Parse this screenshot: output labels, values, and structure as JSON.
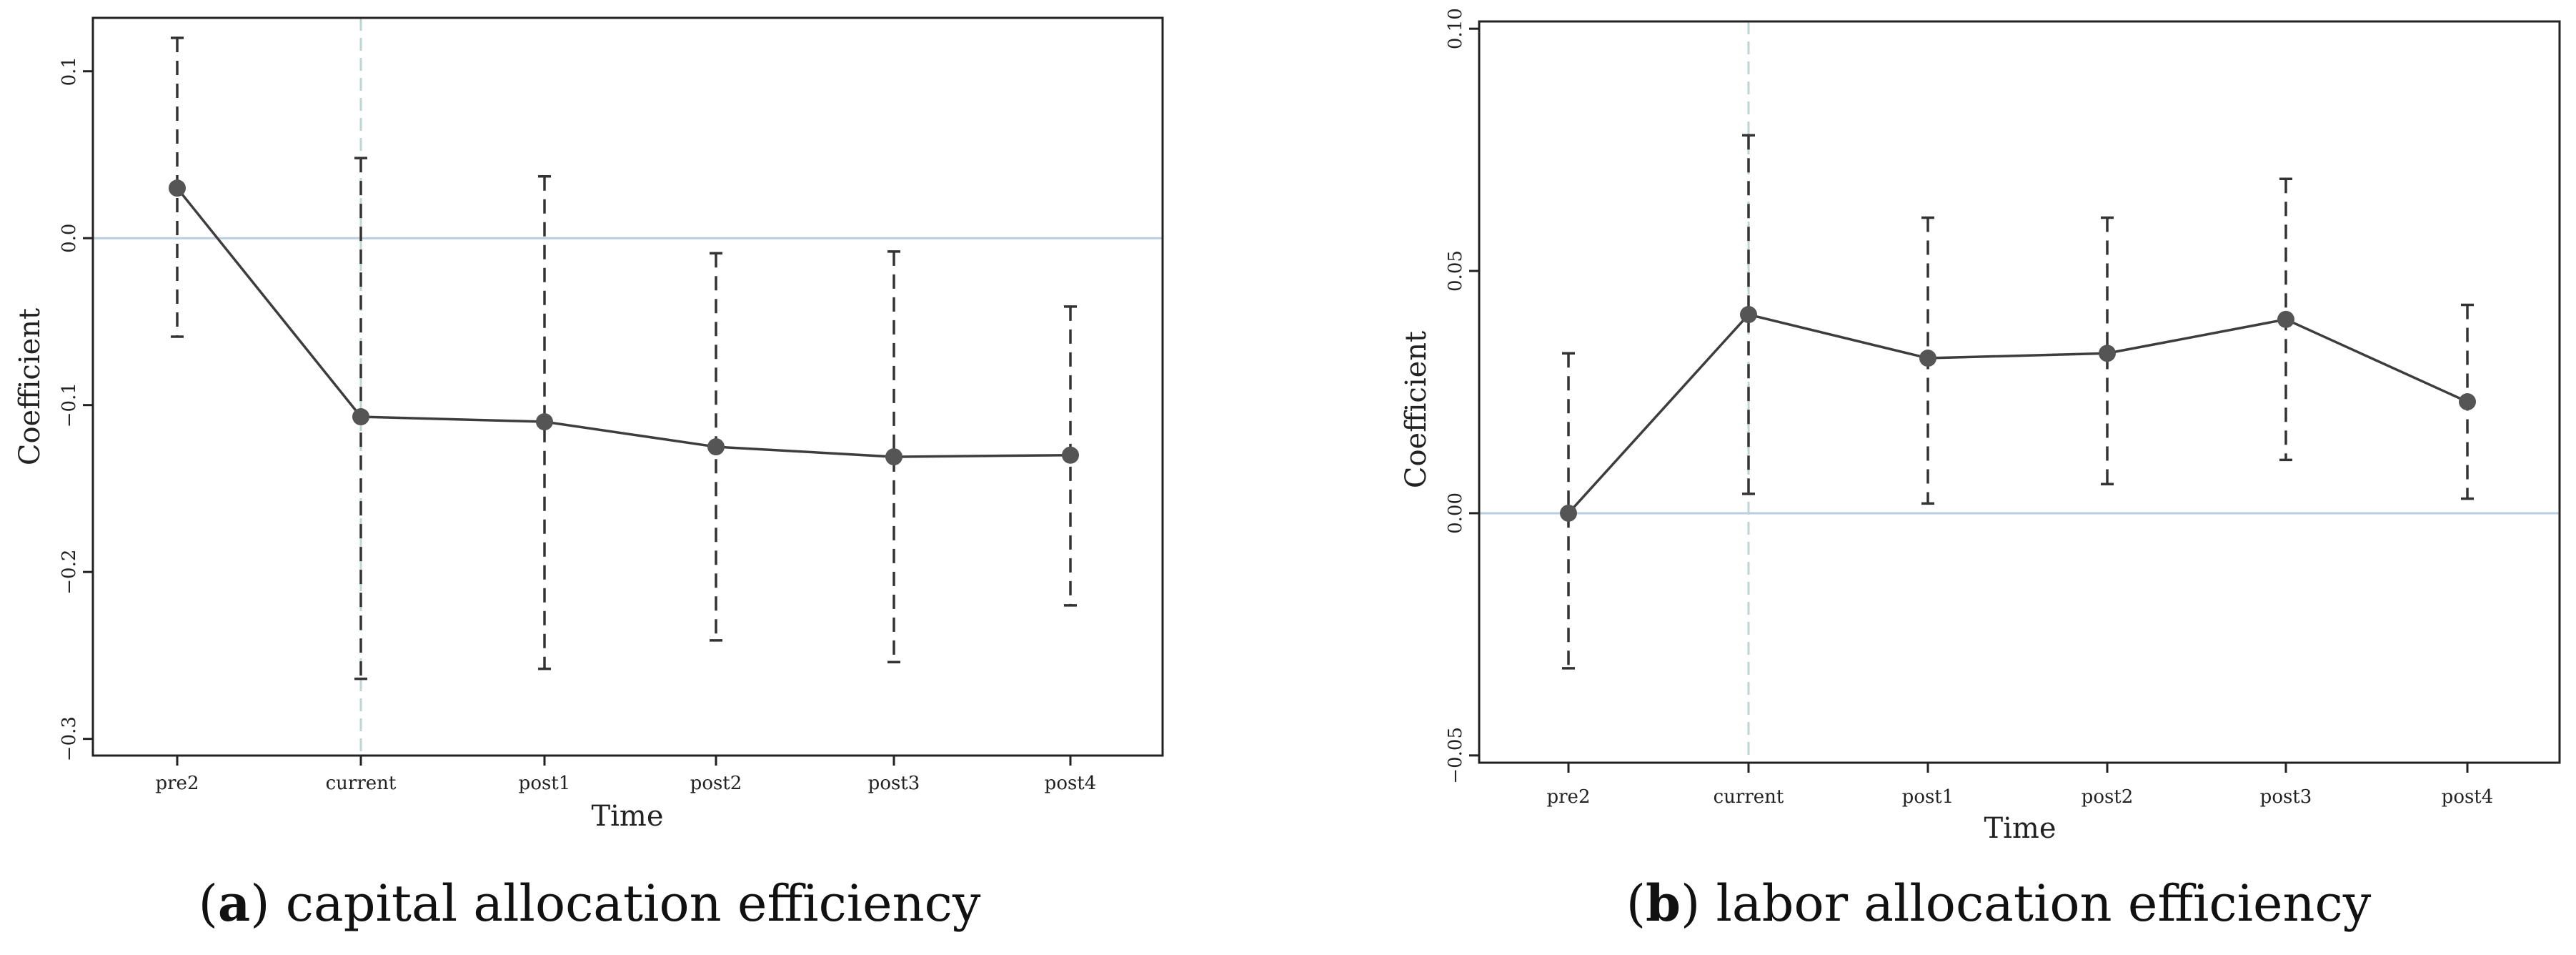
{
  "chart_data": [
    {
      "id": "a",
      "type": "line",
      "subtype": "event-study coefficient plot with 95% confidence intervals",
      "caption_letter": "a",
      "caption_text": "capital allocation efficiency",
      "xlabel": "Time",
      "ylabel": "Coefficient",
      "categories": [
        "pre2",
        "current",
        "post1",
        "post2",
        "post3",
        "post4"
      ],
      "values": [
        0.03,
        -0.107,
        -0.11,
        -0.125,
        -0.131,
        -0.13
      ],
      "ci_lower": [
        -0.059,
        -0.264,
        -0.258,
        -0.241,
        -0.254,
        -0.22
      ],
      "ci_upper": [
        0.12,
        0.048,
        0.037,
        -0.009,
        -0.008,
        -0.041
      ],
      "ylim": [
        -0.31,
        0.132
      ],
      "yticks": [
        0.1,
        0.0,
        -0.1,
        -0.2,
        -0.3
      ],
      "ytick_labels": [
        "0.1",
        "0.0",
        "−0.1",
        "−0.2",
        "−0.3"
      ],
      "reference_hline": 0,
      "reference_vline_category": "current",
      "grid": false
    },
    {
      "id": "b",
      "type": "line",
      "subtype": "event-study coefficient plot with 95% confidence intervals",
      "caption_letter": "b",
      "caption_text": "labor allocation efficiency",
      "xlabel": "Time",
      "ylabel": "Coefficient",
      "categories": [
        "pre2",
        "current",
        "post1",
        "post2",
        "post3",
        "post4"
      ],
      "values": [
        0.0,
        0.041,
        0.032,
        0.033,
        0.04,
        0.023
      ],
      "ci_lower": [
        -0.032,
        0.004,
        0.002,
        0.006,
        0.011,
        0.003
      ],
      "ci_upper": [
        0.033,
        0.078,
        0.061,
        0.061,
        0.069,
        0.043
      ],
      "ylim": [
        -0.0515,
        0.1015
      ],
      "yticks": [
        0.1,
        0.05,
        0.0,
        -0.05
      ],
      "ytick_labels": [
        "0.10",
        "0.05",
        "0.00",
        "−0.05"
      ],
      "reference_hline": 0,
      "reference_vline_category": "current",
      "grid": false
    }
  ],
  "colors": {
    "line": "#3d3d3d",
    "marker": "#555555",
    "errorbar": "#333333",
    "zero_line": "#b9cde0",
    "vertical_line": "#bcd6d3",
    "axis": "#222222"
  }
}
